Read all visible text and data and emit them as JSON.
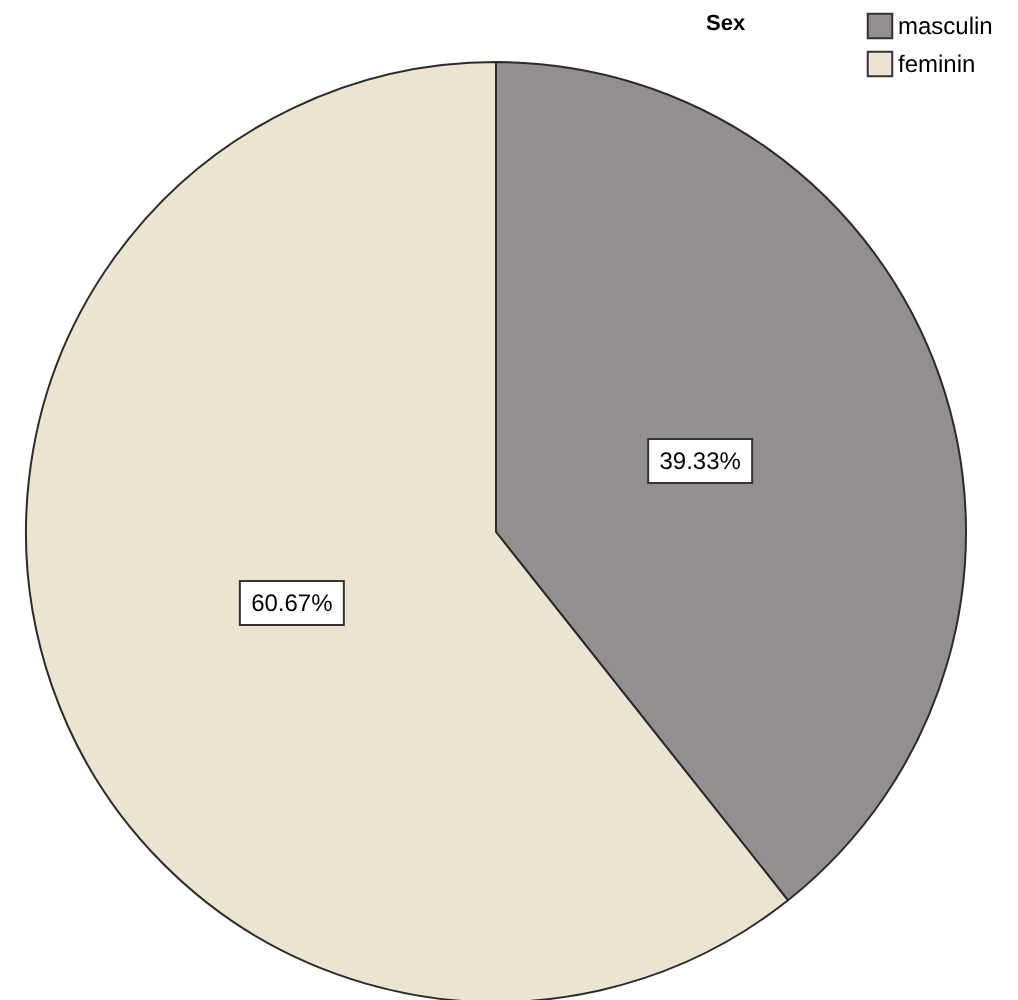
{
  "chart_data": {
    "type": "pie",
    "legend_title": "Sex",
    "legend": "top right",
    "categories": [
      "masculin",
      "feminin"
    ],
    "values": [
      39.33,
      60.67
    ],
    "colors": [
      "#938f8e",
      "#ebe4d0"
    ],
    "value_labels": [
      "39.33%",
      "60.67%"
    ]
  }
}
